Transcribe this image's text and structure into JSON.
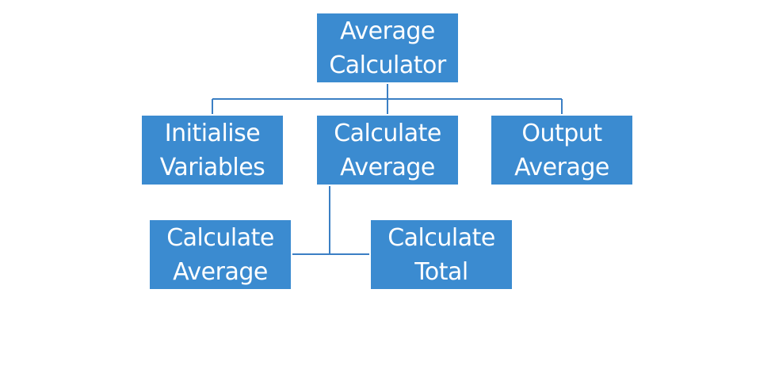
{
  "colors": {
    "node_fill": "#3b8bd0",
    "connector": "#3b7fc4",
    "text": "#ffffff",
    "background": "#ffffff"
  },
  "nodes": {
    "root": "Average\nCalculator",
    "initialise": "Initialise\nVariables",
    "calculate": "Calculate\nAverage",
    "output": "Output\nAverage",
    "calc_average": "Calculate\nAverage",
    "calc_total": "Calculate\nTotal"
  }
}
